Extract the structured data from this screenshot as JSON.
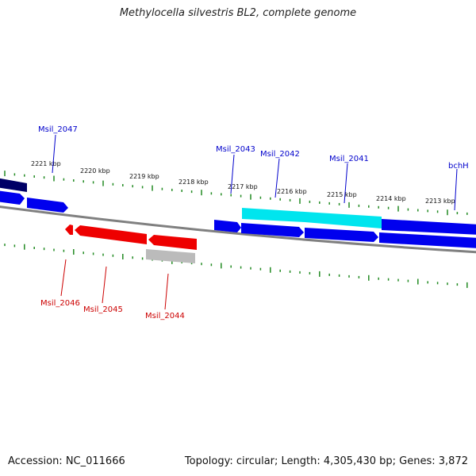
{
  "title": "Methylocella silvestris BL2, complete genome",
  "footer": {
    "accession": "Accession: NC_011666",
    "summary": "Topology: circular; Length: 4,305,430 bp; Genes: 3,872"
  },
  "colors": {
    "backbone": "#808080",
    "ticks": "#228B22",
    "forward_gene": "#0000EE",
    "forward_gene_dark": "#000066",
    "forward_highlight": "#00E5EE",
    "reverse_gene": "#EE0000",
    "reverse_gray": "#BBBBBB",
    "forward_label": "#0000CC",
    "reverse_label": "#CC0000"
  },
  "scale_labels": [
    "2221 kbp",
    "2220 kbp",
    "2219 kbp",
    "2218 kbp",
    "2217 kbp",
    "2216 kbp",
    "2215 kbp",
    "2214 kbp",
    "2213 kbp"
  ],
  "forward_gene_labels": [
    "Msil_2047",
    "Msil_2043",
    "Msil_2042",
    "Msil_2041",
    "bchH"
  ],
  "reverse_gene_labels": [
    "Msil_2046",
    "Msil_2045",
    "Msil_2044"
  ]
}
